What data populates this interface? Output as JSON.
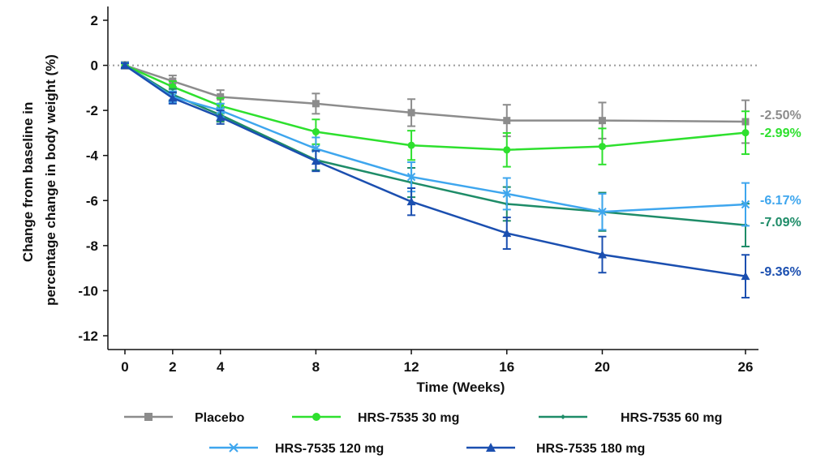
{
  "chart_data": {
    "type": "line",
    "xlabel": "Time (Weeks)",
    "ylabel_lines": [
      "Change from baseline in",
      "percentage change in body weight (%)"
    ],
    "x": [
      0,
      2,
      4,
      8,
      12,
      16,
      20,
      26
    ],
    "x_ticks": [
      0,
      2,
      4,
      8,
      12,
      16,
      20,
      26
    ],
    "y_ticks": [
      2,
      0,
      -2,
      -4,
      -6,
      -8,
      -10,
      -12
    ],
    "xlim": [
      -1,
      26.5
    ],
    "ylim": [
      -12.6,
      2.6
    ],
    "reference_line": {
      "y": 0,
      "style": "dotted",
      "color": "#9a9a9a"
    },
    "grid": false,
    "legend_position": "bottom",
    "series": [
      {
        "name": "Placebo",
        "color": "#8c8c8c",
        "marker": "square",
        "values": [
          0,
          -0.7,
          -1.4,
          -1.7,
          -2.1,
          -2.45,
          -2.45,
          -2.5
        ],
        "errors": [
          0.15,
          0.25,
          0.3,
          0.45,
          0.6,
          0.7,
          0.8,
          0.95
        ],
        "end_label": "-2.50%"
      },
      {
        "name": "HRS-7535 30 mg",
        "color": "#2ee02e",
        "marker": "circle",
        "values": [
          0,
          -0.95,
          -1.8,
          -2.95,
          -3.55,
          -3.75,
          -3.6,
          -2.99
        ],
        "errors": [
          0.1,
          0.25,
          0.35,
          0.55,
          0.65,
          0.75,
          0.8,
          0.95
        ],
        "end_label": "-2.99%"
      },
      {
        "name": "HRS-7535 60 mg",
        "color": "#1e8c68",
        "marker": "diamond",
        "values": [
          0,
          -1.3,
          -2.2,
          -4.2,
          -5.2,
          -6.15,
          -6.5,
          -7.09
        ],
        "errors": [
          0.1,
          0.25,
          0.3,
          0.45,
          0.65,
          0.75,
          0.85,
          0.95
        ],
        "end_label": "-7.09%"
      },
      {
        "name": "HRS-7535 120 mg",
        "color": "#3ea6ee",
        "marker": "cross",
        "values": [
          0,
          -1.4,
          -2.0,
          -3.7,
          -4.95,
          -5.7,
          -6.5,
          -6.17
        ],
        "errors": [
          0.1,
          0.25,
          0.3,
          0.5,
          0.65,
          0.7,
          0.8,
          0.95
        ],
        "end_label": "-6.17%"
      },
      {
        "name": "HRS-7535 180 mg",
        "color": "#1b4fb0",
        "marker": "triangle",
        "values": [
          0,
          -1.45,
          -2.3,
          -4.25,
          -6.05,
          -7.45,
          -8.4,
          -9.36
        ],
        "errors": [
          0.1,
          0.25,
          0.3,
          0.45,
          0.6,
          0.7,
          0.8,
          0.95
        ],
        "end_label": "-9.36%"
      }
    ]
  }
}
